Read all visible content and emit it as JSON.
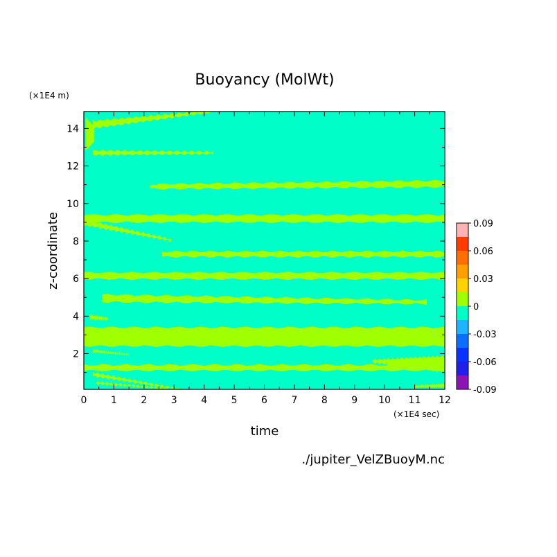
{
  "chart_data": {
    "type": "heatmap",
    "title": "Buoyancy (MolWt)",
    "xlabel": "time",
    "ylabel": "z-coordinate",
    "x_unit_label": "(×1E4 sec)",
    "y_unit_label": "(×1E4 m)",
    "xlim": [
      0,
      12
    ],
    "ylim": [
      0.1,
      14.9
    ],
    "x_ticks": [
      0,
      1,
      2,
      3,
      4,
      5,
      6,
      7,
      8,
      9,
      10,
      11,
      12
    ],
    "y_ticks": [
      2,
      4,
      6,
      8,
      10,
      12,
      14
    ],
    "grid": false,
    "colorbar": {
      "levels": [
        -0.09,
        -0.075,
        -0.06,
        -0.045,
        -0.03,
        -0.015,
        0,
        0.015,
        0.03,
        0.045,
        0.06,
        0.075,
        0.09
      ],
      "tick_labels": [
        "0.09",
        "0.06",
        "0.03",
        "0",
        "-0.03",
        "-0.06",
        "-0.09"
      ],
      "tick_values": [
        0.09,
        0.06,
        0.03,
        0,
        -0.03,
        -0.06,
        -0.09
      ],
      "colors": [
        "#8a14b4",
        "#2020e6",
        "#0a32ff",
        "#0a6eff",
        "#1eb4ff",
        "#00ffc8",
        "#a0ff00",
        "#ffd200",
        "#ffa000",
        "#ff6e00",
        "#ff3c00",
        "#ffb4b4"
      ]
    },
    "background_color": "#00ffc8",
    "positive_color": "#a0ff00",
    "bands": [
      {
        "x0": 0,
        "x1": 12,
        "y_start": 2.9,
        "y_end": 2.9,
        "w_start": 1.0,
        "w_end": 1.0
      },
      {
        "x0": 0,
        "x1": 12,
        "y_start": 1.25,
        "y_end": 1.25,
        "w_start": 0.3,
        "w_end": 0.3
      },
      {
        "x0": 9.6,
        "x1": 12,
        "y_start": 1.6,
        "y_end": 1.45,
        "w_start": 0.15,
        "w_end": 0.85
      },
      {
        "x0": 0,
        "x1": 12,
        "y_start": 6.15,
        "y_end": 6.15,
        "w_start": 0.35,
        "w_end": 0.35
      },
      {
        "x0": 2.6,
        "x1": 12,
        "y_start": 7.3,
        "y_end": 7.3,
        "w_start": 0.28,
        "w_end": 0.28
      },
      {
        "x0": 0,
        "x1": 12,
        "y_start": 9.2,
        "y_end": 9.2,
        "w_start": 0.4,
        "w_end": 0.4
      },
      {
        "x0": 0,
        "x1": 2.9,
        "y_start": 9.0,
        "y_end": 8.05,
        "w_start": 0.3,
        "w_end": 0.1
      },
      {
        "x0": 2.2,
        "x1": 12,
        "y_start": 10.9,
        "y_end": 11.05,
        "w_start": 0.25,
        "w_end": 0.35
      },
      {
        "x0": 0.3,
        "x1": 4.3,
        "y_start": 12.7,
        "y_end": 12.7,
        "w_start": 0.25,
        "w_end": 0.12
      },
      {
        "x0": 0.3,
        "x1": 4.2,
        "y_start": 14.2,
        "y_end": 14.9,
        "w_start": 0.4,
        "w_end": 0.1
      },
      {
        "x0": 0.05,
        "x1": 0.35,
        "y_start": 13.7,
        "y_end": 13.7,
        "w_start": 1.8,
        "w_end": 0.8
      },
      {
        "x0": 0.6,
        "x1": 11.4,
        "y_start": 4.95,
        "y_end": 4.75,
        "w_start": 0.4,
        "w_end": 0.2
      },
      {
        "x0": 0.3,
        "x1": 3.2,
        "y_start": 0.9,
        "y_end": 0.1,
        "w_start": 0.2,
        "w_end": 0.05
      },
      {
        "x0": 0.4,
        "x1": 2.8,
        "y_start": 0.45,
        "y_end": 0.12,
        "w_start": 0.12,
        "w_end": 0.05
      },
      {
        "x0": 0.3,
        "x1": 1.5,
        "y_start": 2.15,
        "y_end": 1.95,
        "w_start": 0.15,
        "w_end": 0.05
      },
      {
        "x0": 11.0,
        "x1": 12,
        "y_start": 0.25,
        "y_end": 0.3,
        "w_start": 0.1,
        "w_end": 0.2
      },
      {
        "x0": 0.2,
        "x1": 0.8,
        "y_start": 3.95,
        "y_end": 3.85,
        "w_start": 0.25,
        "w_end": 0.12
      }
    ],
    "annotation": "./jupiter_VelZBuoyM.nc"
  }
}
